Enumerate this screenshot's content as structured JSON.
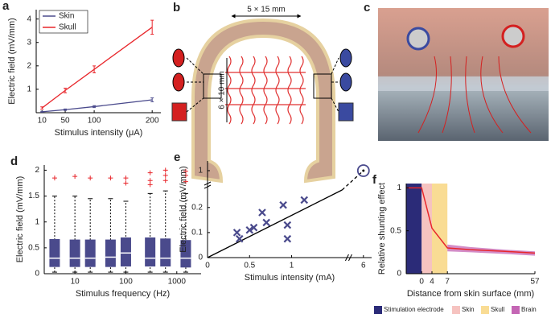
{
  "diagram": {
    "panel": "b",
    "width_label": "5 × 15 mm",
    "height_label": "6 × 10 mm"
  },
  "photo": {
    "panel": "c"
  },
  "chart_data": [
    {
      "panel": "a",
      "type": "line",
      "xlabel": "Stimulus intensity (μA)",
      "ylabel": "Electric field (mV/mm)",
      "x": [
        10,
        50,
        100,
        200
      ],
      "xlim": [
        0,
        215
      ],
      "xticks": [
        10,
        50,
        100,
        200
      ],
      "ylim": [
        0,
        4.4
      ],
      "yticks": [
        1,
        2,
        3,
        4
      ],
      "legend": "upper left",
      "series": [
        {
          "name": "Skin",
          "color": "#4a4a8c",
          "values": [
            0.04,
            0.13,
            0.26,
            0.55
          ],
          "errors": [
            0.02,
            0.03,
            0.04,
            0.08
          ]
        },
        {
          "name": "Skull",
          "color": "#e8262b",
          "values": [
            0.2,
            0.95,
            1.85,
            3.65
          ],
          "errors": [
            0.05,
            0.1,
            0.15,
            0.3
          ]
        }
      ]
    },
    {
      "panel": "d",
      "type": "box",
      "xlabel": "Stimulus frequency (Hz)",
      "ylabel": "Electric field (mV/mm)",
      "log_x": true,
      "xlim": [
        2.5,
        3000
      ],
      "xticks": [
        10,
        100,
        1000
      ],
      "ylim": [
        0,
        2.1
      ],
      "yticks": [
        0,
        0.5,
        1,
        1.5,
        2
      ],
      "color": "#4a4a8c",
      "outlier_color": "#e8262b",
      "x": [
        4,
        10,
        20,
        50,
        100,
        300,
        600,
        1500
      ],
      "whisker_low": [
        0.03,
        0.03,
        0.03,
        0.03,
        0.03,
        0.03,
        0.03,
        0.03
      ],
      "q1": [
        0.13,
        0.13,
        0.13,
        0.13,
        0.14,
        0.14,
        0.14,
        0.12
      ],
      "median": [
        0.3,
        0.3,
        0.3,
        0.32,
        0.4,
        0.3,
        0.3,
        0.3
      ],
      "q3": [
        0.67,
        0.66,
        0.66,
        0.66,
        0.7,
        0.7,
        0.68,
        0.65
      ],
      "whisker_high": [
        1.5,
        1.5,
        1.45,
        1.45,
        1.4,
        1.55,
        1.6,
        1.55
      ],
      "outliers": [
        [
          1.85
        ],
        [
          1.88
        ],
        [
          1.85
        ],
        [
          1.85
        ],
        [
          1.75,
          1.85
        ],
        [
          1.72,
          1.8,
          1.95
        ],
        [
          1.8,
          1.9,
          2.0
        ],
        [
          1.78,
          1.9,
          1.98
        ]
      ]
    },
    {
      "panel": "e",
      "type": "scatter",
      "xlabel": "Stimulus intensity (mA)",
      "ylabel": "Electric field (mV/mm)",
      "xlim": [
        0,
        6.1
      ],
      "xbreak": [
        1.6,
        5.9
      ],
      "ylim": [
        0,
        1.1
      ],
      "ybreak": [
        0.27,
        0.9
      ],
      "xticks": [
        0,
        0.5,
        1,
        6
      ],
      "yticks": [
        0,
        0.1,
        0.2,
        1
      ],
      "color": "#4a4a8c",
      "x": [
        0.35,
        0.38,
        0.5,
        0.55,
        0.65,
        0.7,
        0.9,
        0.95,
        0.95,
        1.15
      ],
      "values": [
        0.1,
        0.075,
        0.11,
        0.12,
        0.18,
        0.14,
        0.21,
        0.13,
        0.075,
        0.23
      ],
      "highlight": {
        "x": 6,
        "value": 1
      },
      "fit": {
        "x": [
          0,
          1.6,
          6
        ],
        "values": [
          0,
          0.27,
          1
        ],
        "color": "#000000"
      }
    },
    {
      "panel": "f",
      "type": "line",
      "xlabel": "Distance from skin surface (mm)",
      "ylabel": "Relative shunting effect",
      "xlim": [
        -5,
        57
      ],
      "xticks": [
        0,
        4,
        7,
        57
      ],
      "ylim": [
        0,
        1.05
      ],
      "yticks": [
        0,
        0.5,
        1
      ],
      "regions": [
        {
          "name": "Stimulation electrode",
          "color": "#2b2b78",
          "span": [
            -5,
            0
          ]
        },
        {
          "name": "Skin",
          "color": "#f6c3c0",
          "span": [
            0,
            4
          ]
        },
        {
          "name": "Skull",
          "color": "#f9dc94",
          "span": [
            4,
            7
          ]
        }
      ],
      "band": {
        "name": "Brain",
        "color": "#c466b4",
        "low": [
          null,
          null,
          null,
          0.26,
          0.25,
          0.23,
          0.21
        ],
        "high": [
          null,
          null,
          null,
          0.34,
          0.31,
          0.28,
          0.26
        ]
      },
      "x": [
        -5,
        0,
        4,
        7,
        20,
        40,
        57
      ],
      "values": [
        1,
        1,
        0.53,
        0.3,
        0.28,
        0.26,
        0.24
      ],
      "color": "#e8262b"
    }
  ]
}
